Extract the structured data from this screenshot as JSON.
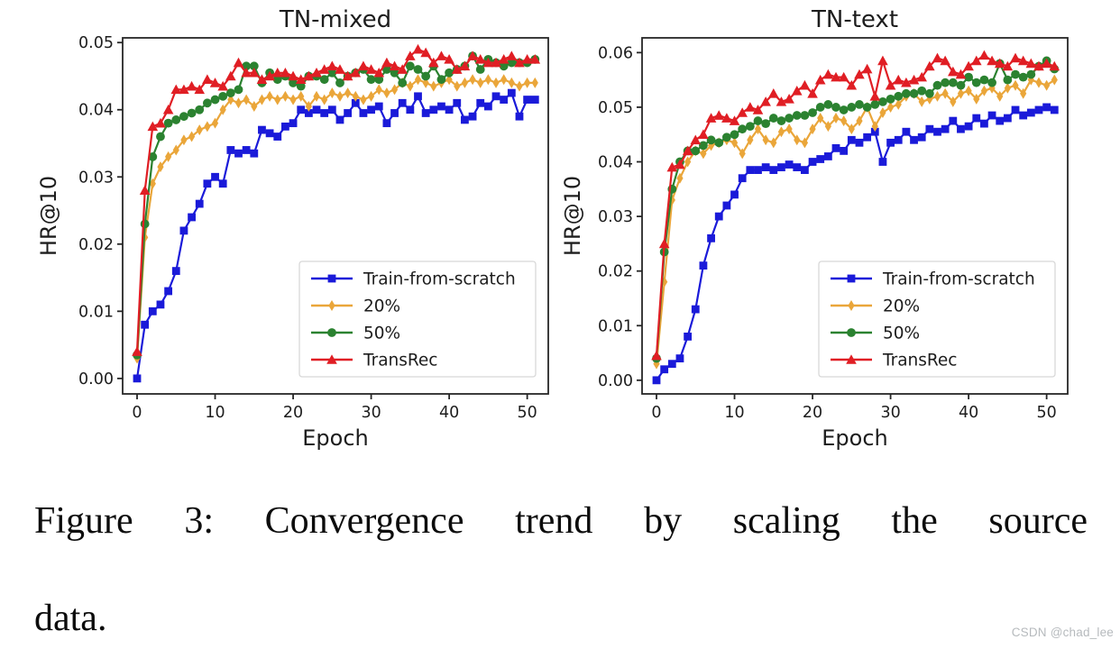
{
  "figure": {
    "caption_line1": "Figure 3:  Convergence trend by scaling the source",
    "caption_line2": "data.",
    "watermark": "CSDN @chad_lee"
  },
  "style": {
    "axis_color": "#262626",
    "tick_label_color": "#1d1d1d",
    "legend_border_color": "#d8d8d8",
    "legend_bg_color": "#ffffff",
    "plot_bg_color": "#ffffff"
  },
  "chart_data": [
    {
      "type": "line",
      "title": "TN-mixed",
      "xlabel": "Epoch",
      "ylabel": "HR@10",
      "grid": false,
      "legend_position": "lower right",
      "xlim": [
        -1.85,
        52.7
      ],
      "ylim": [
        -0.0023,
        0.0507
      ],
      "xticks": [
        0,
        10,
        20,
        30,
        40,
        50
      ],
      "ytick_values": [
        0.0,
        0.01,
        0.02,
        0.03,
        0.04,
        0.05
      ],
      "ytick_labels": [
        "0.00",
        "0.01",
        "0.02",
        "0.03",
        "0.04",
        "0.05"
      ],
      "x_step": 1,
      "series": [
        {
          "name": "Train-from-scratch",
          "color": "#1a1ad9",
          "marker": "square",
          "values": [
            0.0,
            0.008,
            0.01,
            0.011,
            0.013,
            0.016,
            0.022,
            0.024,
            0.026,
            0.029,
            0.03,
            0.029,
            0.034,
            0.0335,
            0.034,
            0.0335,
            0.037,
            0.0365,
            0.036,
            0.0375,
            0.038,
            0.04,
            0.0395,
            0.04,
            0.0395,
            0.04,
            0.0385,
            0.0395,
            0.041,
            0.0395,
            0.04,
            0.0405,
            0.038,
            0.0395,
            0.041,
            0.04,
            0.042,
            0.0395,
            0.04,
            0.0405,
            0.04,
            0.041,
            0.0385,
            0.039,
            0.041,
            0.0405,
            0.042,
            0.0415,
            0.0425,
            0.039,
            0.0415,
            0.0415
          ]
        },
        {
          "name": "20%",
          "color": "#eaa63a",
          "marker": "diamond",
          "values": [
            0.003,
            0.021,
            0.029,
            0.0315,
            0.033,
            0.034,
            0.0355,
            0.036,
            0.037,
            0.0375,
            0.038,
            0.04,
            0.0415,
            0.041,
            0.0415,
            0.0405,
            0.0415,
            0.042,
            0.0415,
            0.042,
            0.0415,
            0.042,
            0.0405,
            0.042,
            0.0415,
            0.0425,
            0.042,
            0.0425,
            0.042,
            0.0415,
            0.042,
            0.043,
            0.0425,
            0.043,
            0.044,
            0.0435,
            0.0445,
            0.044,
            0.0435,
            0.044,
            0.0445,
            0.0435,
            0.044,
            0.0445,
            0.044,
            0.0445,
            0.044,
            0.0445,
            0.044,
            0.0435,
            0.044,
            0.044
          ]
        },
        {
          "name": "50%",
          "color": "#2b8230",
          "marker": "circle",
          "values": [
            0.0035,
            0.023,
            0.033,
            0.036,
            0.038,
            0.0385,
            0.039,
            0.0395,
            0.04,
            0.041,
            0.0415,
            0.042,
            0.0425,
            0.043,
            0.0465,
            0.0465,
            0.044,
            0.0455,
            0.0445,
            0.045,
            0.044,
            0.0435,
            0.045,
            0.045,
            0.0445,
            0.0455,
            0.044,
            0.045,
            0.0455,
            0.046,
            0.0445,
            0.0445,
            0.046,
            0.0455,
            0.044,
            0.0465,
            0.046,
            0.045,
            0.0465,
            0.0445,
            0.0455,
            0.046,
            0.0465,
            0.048,
            0.046,
            0.0475,
            0.047,
            0.0465,
            0.047,
            0.047,
            0.047,
            0.0475
          ]
        },
        {
          "name": "TransRec",
          "color": "#e01e24",
          "marker": "triangle",
          "values": [
            0.004,
            0.028,
            0.0375,
            0.038,
            0.04,
            0.043,
            0.043,
            0.0435,
            0.043,
            0.0445,
            0.044,
            0.0435,
            0.045,
            0.047,
            0.0455,
            0.0455,
            0.0445,
            0.045,
            0.0455,
            0.0455,
            0.045,
            0.0445,
            0.045,
            0.0455,
            0.046,
            0.0465,
            0.046,
            0.045,
            0.0455,
            0.0465,
            0.046,
            0.0455,
            0.047,
            0.0465,
            0.046,
            0.048,
            0.049,
            0.0485,
            0.047,
            0.048,
            0.0475,
            0.046,
            0.0465,
            0.048,
            0.0475,
            0.047,
            0.047,
            0.0475,
            0.048,
            0.047,
            0.0475,
            0.0475
          ]
        }
      ]
    },
    {
      "type": "line",
      "title": "TN-text",
      "xlabel": "Epoch",
      "ylabel": "HR@10",
      "grid": false,
      "legend_position": "lower right",
      "xlim": [
        -1.85,
        52.7
      ],
      "ylim": [
        -0.0025,
        0.0627
      ],
      "xticks": [
        0,
        10,
        20,
        30,
        40,
        50
      ],
      "ytick_values": [
        0.0,
        0.01,
        0.02,
        0.03,
        0.04,
        0.05,
        0.06
      ],
      "ytick_labels": [
        "0.00",
        "0.01",
        "0.02",
        "0.03",
        "0.04",
        "0.05",
        "0.06"
      ],
      "x_step": 1,
      "series": [
        {
          "name": "Train-from-scratch",
          "color": "#1a1ad9",
          "marker": "square",
          "values": [
            0.0,
            0.002,
            0.003,
            0.004,
            0.008,
            0.013,
            0.021,
            0.026,
            0.03,
            0.032,
            0.034,
            0.037,
            0.0385,
            0.0385,
            0.039,
            0.0385,
            0.039,
            0.0395,
            0.039,
            0.0385,
            0.04,
            0.0405,
            0.041,
            0.0425,
            0.042,
            0.044,
            0.0435,
            0.0445,
            0.0455,
            0.04,
            0.0435,
            0.044,
            0.0455,
            0.044,
            0.0445,
            0.046,
            0.0455,
            0.046,
            0.0475,
            0.046,
            0.0465,
            0.048,
            0.047,
            0.0485,
            0.0475,
            0.048,
            0.0495,
            0.0485,
            0.049,
            0.0495,
            0.05,
            0.0495
          ]
        },
        {
          "name": "20%",
          "color": "#eaa63a",
          "marker": "diamond",
          "values": [
            0.003,
            0.018,
            0.033,
            0.037,
            0.04,
            0.042,
            0.0415,
            0.043,
            0.0435,
            0.044,
            0.0435,
            0.0415,
            0.044,
            0.046,
            0.044,
            0.0435,
            0.0455,
            0.046,
            0.044,
            0.0435,
            0.046,
            0.048,
            0.0465,
            0.048,
            0.0475,
            0.046,
            0.0475,
            0.05,
            0.0465,
            0.049,
            0.05,
            0.0505,
            0.052,
            0.0525,
            0.051,
            0.0515,
            0.052,
            0.0525,
            0.051,
            0.0525,
            0.053,
            0.0515,
            0.053,
            0.0535,
            0.052,
            0.0535,
            0.054,
            0.0525,
            0.055,
            0.0545,
            0.054,
            0.055
          ]
        },
        {
          "name": "50%",
          "color": "#2b8230",
          "marker": "circle",
          "values": [
            0.004,
            0.0235,
            0.035,
            0.04,
            0.042,
            0.042,
            0.043,
            0.044,
            0.0435,
            0.0445,
            0.045,
            0.046,
            0.0465,
            0.0475,
            0.047,
            0.048,
            0.0475,
            0.048,
            0.0485,
            0.0485,
            0.049,
            0.05,
            0.0505,
            0.05,
            0.0495,
            0.05,
            0.0505,
            0.05,
            0.0505,
            0.051,
            0.0515,
            0.052,
            0.0525,
            0.0525,
            0.053,
            0.0525,
            0.054,
            0.0545,
            0.0545,
            0.054,
            0.0555,
            0.0545,
            0.055,
            0.0545,
            0.058,
            0.055,
            0.056,
            0.0555,
            0.056,
            0.0575,
            0.0585,
            0.057
          ]
        },
        {
          "name": "TransRec",
          "color": "#e01e24",
          "marker": "triangle",
          "values": [
            0.0045,
            0.025,
            0.039,
            0.0395,
            0.042,
            0.044,
            0.045,
            0.048,
            0.0485,
            0.048,
            0.0475,
            0.049,
            0.05,
            0.0495,
            0.051,
            0.0525,
            0.051,
            0.0515,
            0.053,
            0.054,
            0.0525,
            0.055,
            0.056,
            0.0555,
            0.0555,
            0.054,
            0.056,
            0.057,
            0.052,
            0.0585,
            0.054,
            0.055,
            0.0545,
            0.055,
            0.0555,
            0.0575,
            0.059,
            0.0585,
            0.0565,
            0.056,
            0.0575,
            0.0585,
            0.0595,
            0.0585,
            0.058,
            0.0575,
            0.059,
            0.0585,
            0.058,
            0.0575,
            0.058,
            0.0575
          ]
        }
      ]
    }
  ]
}
